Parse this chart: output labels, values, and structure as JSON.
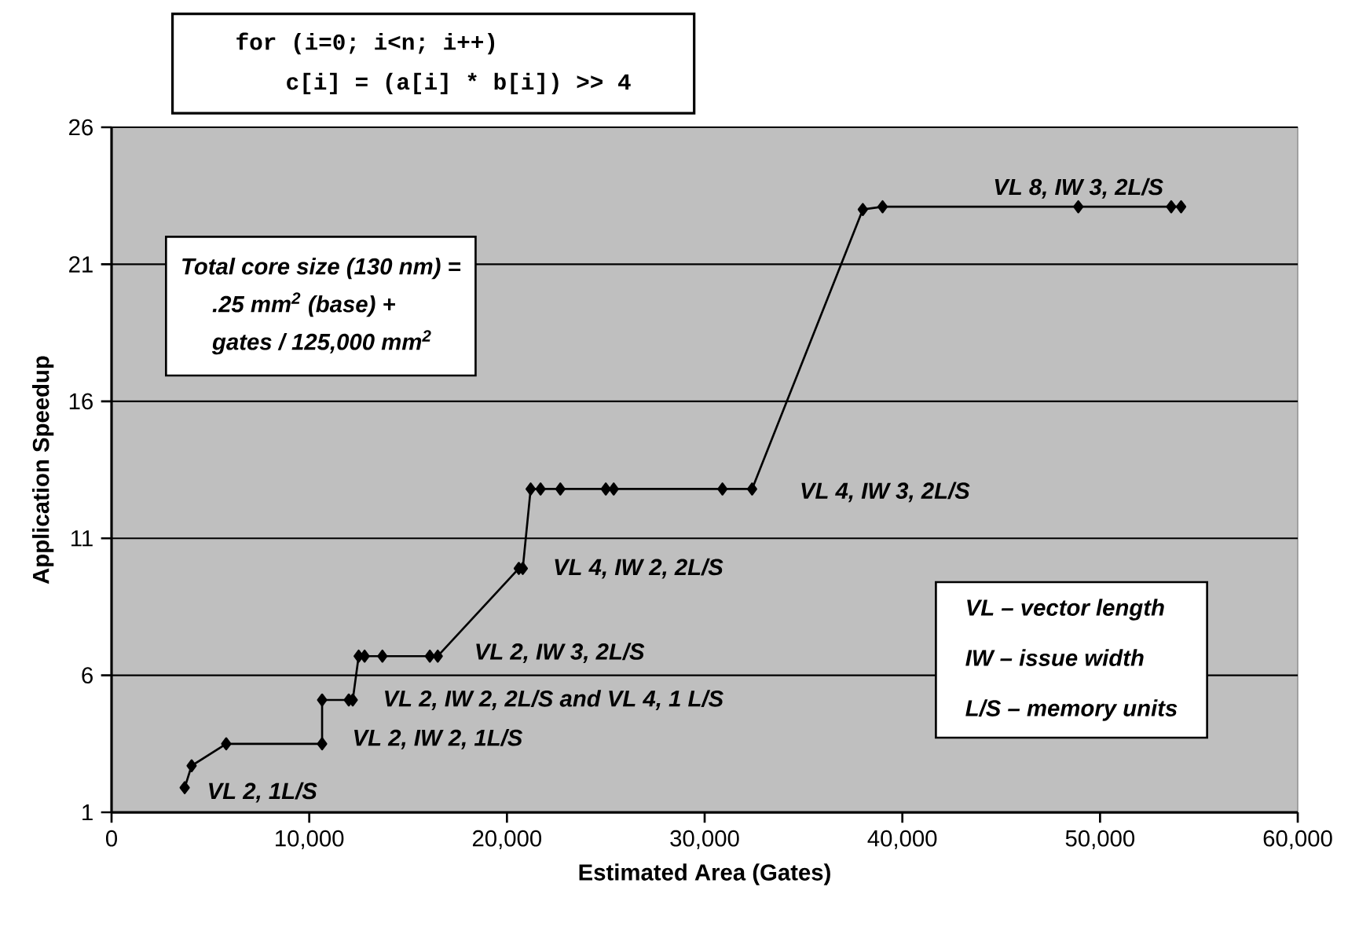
{
  "chart_data": {
    "type": "line",
    "xlabel": "Estimated Area (Gates)",
    "ylabel": "Application Speedup",
    "x": [
      3700,
      4050,
      5800,
      10650,
      10650,
      12000,
      12200,
      12500,
      12800,
      13700,
      16100,
      16500,
      20600,
      20800,
      21200,
      21700,
      22700,
      25000,
      25400,
      30900,
      32400,
      38000,
      39000,
      48900,
      53600,
      54100
    ],
    "series": [
      {
        "color": "#000000",
        "values": [
          1.9,
          2.7,
          3.5,
          3.5,
          5.1,
          5.1,
          5.1,
          6.7,
          6.7,
          6.7,
          6.7,
          6.7,
          9.9,
          9.9,
          12.8,
          12.8,
          12.8,
          12.8,
          12.8,
          12.8,
          12.8,
          23.0,
          23.1,
          23.1,
          23.1,
          23.1
        ]
      }
    ],
    "marker": "diamond",
    "line_style": "solid",
    "grid": "y",
    "xlim": [
      0,
      60000
    ],
    "ylim": [
      1,
      26
    ],
    "xticks": [
      0,
      {
        "value": 10000,
        "label": "10,000"
      },
      {
        "value": 20000,
        "label": "20,000"
      },
      {
        "value": 30000,
        "label": "30,000"
      },
      {
        "value": 40000,
        "label": "40,000"
      },
      {
        "value": 50000,
        "label": "50,000"
      },
      {
        "value": 60000,
        "label": "60,000"
      }
    ],
    "yticks": [
      1,
      6,
      11,
      16,
      21,
      26
    ],
    "annotations": [
      {
        "text": "VL 2, 1L/S",
        "x": 3700,
        "y": 1.9
      },
      {
        "text": "VL 2, IW 2, 1L/S",
        "x": 10650,
        "y": 3.5
      },
      {
        "text": "VL 2, IW 2, 2L/S  and VL 4, 1 L/S",
        "x": 12200,
        "y": 5.1
      },
      {
        "text": "VL 2, IW 3, 2L/S",
        "x": 16500,
        "y": 6.7
      },
      {
        "text": "VL 4, IW 2, 2L/S",
        "x": 20800,
        "y": 9.9
      },
      {
        "text": "VL 4, IW 3, 2L/S",
        "x": 32400,
        "y": 12.8
      },
      {
        "text": "VL 8, IW 3, 2L/S",
        "x": 48900,
        "y": 23.1
      },
      "for (i=0; i<n; i++)",
      "c[i] = (a[i] * b[i]) >> 4",
      "Total core size (130 nm) =",
      ".25 mm$^{2}$ (base) +",
      "gates / 125,000 mm$^{2}$",
      "VL  – vector length",
      "IW  – issue width",
      "L/S – memory units"
    ]
  }
}
